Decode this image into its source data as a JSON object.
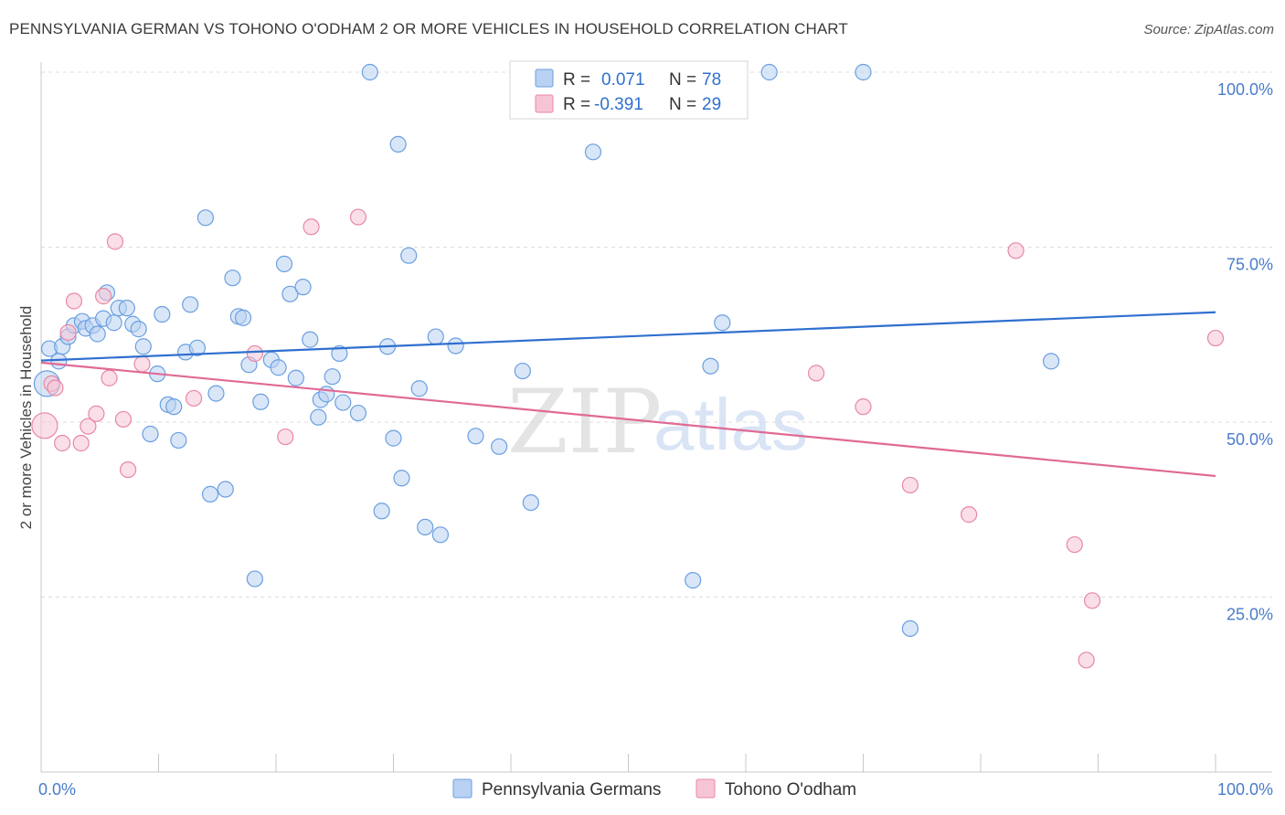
{
  "title": "PENNSYLVANIA GERMAN VS TOHONO O'ODHAM 2 OR MORE VEHICLES IN HOUSEHOLD CORRELATION CHART",
  "source": "Source: ZipAtlas.com",
  "watermark": {
    "zip": "ZIP",
    "atlas": "atlas"
  },
  "colors": {
    "blue": "#6a9fe0",
    "blue_fill": "#b9d1f2",
    "blue_line": "#2f6fcf",
    "pink": "#e887a6",
    "pink_fill": "#f6c5d5",
    "pink_line": "#e06a94",
    "axis_text": "#4a7cc9"
  },
  "legend": {
    "rows": [
      {
        "r_label": "R =",
        "r_value": "0.071",
        "n_label": "N =",
        "n_value": "78"
      },
      {
        "r_label": "R =",
        "r_value": "-0.391",
        "n_label": "N =",
        "n_value": "29"
      }
    ]
  },
  "chart_data": {
    "type": "scatter",
    "title": "PENNSYLVANIA GERMAN VS TOHONO O'ODHAM 2 OR MORE VEHICLES IN HOUSEHOLD CORRELATION CHART",
    "xlabel": "",
    "ylabel": "2 or more Vehicles in Household",
    "xlim": [
      0,
      100
    ],
    "ylim": [
      0,
      105
    ],
    "x_tick_labels": [
      {
        "value": 0,
        "label": "0.0%"
      },
      {
        "value": 100,
        "label": "100.0%"
      }
    ],
    "y_tick_labels": [
      {
        "value": 100,
        "label": "100.0%"
      },
      {
        "value": 75,
        "label": "75.0%"
      },
      {
        "value": 50,
        "label": "50.0%"
      },
      {
        "value": 25,
        "label": "25.0%"
      }
    ],
    "grid": true,
    "legend_position": "top-center",
    "series": [
      {
        "name": "Pennsylvania Germans",
        "color": "#6a9fe0",
        "trend": {
          "x": [
            0,
            100
          ],
          "y": [
            58.8,
            65.7
          ]
        },
        "points": [
          [
            0.5,
            55.5
          ],
          [
            0.7,
            60.5
          ],
          [
            1.5,
            58.7
          ],
          [
            1.8,
            60.8
          ],
          [
            2.3,
            62.2
          ],
          [
            2.8,
            63.8
          ],
          [
            3.5,
            64.4
          ],
          [
            3.8,
            63.4
          ],
          [
            4.4,
            63.8
          ],
          [
            4.8,
            62.6
          ],
          [
            5.3,
            64.8
          ],
          [
            5.6,
            68.5
          ],
          [
            6.2,
            64.2
          ],
          [
            6.6,
            66.3
          ],
          [
            7.3,
            66.3
          ],
          [
            7.8,
            64.0
          ],
          [
            8.3,
            63.3
          ],
          [
            8.7,
            60.8
          ],
          [
            9.3,
            48.3
          ],
          [
            9.9,
            56.9
          ],
          [
            10.3,
            65.4
          ],
          [
            10.8,
            52.5
          ],
          [
            11.3,
            52.2
          ],
          [
            11.7,
            47.4
          ],
          [
            12.3,
            60.0
          ],
          [
            12.7,
            66.8
          ],
          [
            13.3,
            60.6
          ],
          [
            14.0,
            79.2
          ],
          [
            14.4,
            39.7
          ],
          [
            14.9,
            54.1
          ],
          [
            15.7,
            40.4
          ],
          [
            16.3,
            70.6
          ],
          [
            16.8,
            65.1
          ],
          [
            17.2,
            64.9
          ],
          [
            17.7,
            58.2
          ],
          [
            18.2,
            27.6
          ],
          [
            18.7,
            52.9
          ],
          [
            19.6,
            58.9
          ],
          [
            20.2,
            57.8
          ],
          [
            20.7,
            72.6
          ],
          [
            21.2,
            68.3
          ],
          [
            21.7,
            56.3
          ],
          [
            22.3,
            69.3
          ],
          [
            22.9,
            61.8
          ],
          [
            23.6,
            50.7
          ],
          [
            23.8,
            53.2
          ],
          [
            24.3,
            54.0
          ],
          [
            24.8,
            56.5
          ],
          [
            25.4,
            59.8
          ],
          [
            25.7,
            52.8
          ],
          [
            27.0,
            51.3
          ],
          [
            28.0,
            100.0
          ],
          [
            29.0,
            37.3
          ],
          [
            29.5,
            60.8
          ],
          [
            30.0,
            47.7
          ],
          [
            30.4,
            89.7
          ],
          [
            30.7,
            42.0
          ],
          [
            31.3,
            73.8
          ],
          [
            32.2,
            54.8
          ],
          [
            32.7,
            35.0
          ],
          [
            33.6,
            62.2
          ],
          [
            34.0,
            33.9
          ],
          [
            35.3,
            60.9
          ],
          [
            37.0,
            48.0
          ],
          [
            39.0,
            46.5
          ],
          [
            41.0,
            57.3
          ],
          [
            41.7,
            38.5
          ],
          [
            43.0,
            100.0
          ],
          [
            47.0,
            88.6
          ],
          [
            50.0,
            100.0
          ],
          [
            54.0,
            100.0
          ],
          [
            55.5,
            27.4
          ],
          [
            57.0,
            58.0
          ],
          [
            58.0,
            64.2
          ],
          [
            62.0,
            100.0
          ],
          [
            70.0,
            100.0
          ],
          [
            74.0,
            20.5
          ],
          [
            86.0,
            58.7
          ]
        ]
      },
      {
        "name": "Tohono O'odham",
        "color": "#e887a6",
        "trend": {
          "x": [
            0,
            100
          ],
          "y": [
            58.5,
            42.3
          ]
        },
        "points": [
          [
            0.3,
            49.5
          ],
          [
            0.9,
            55.5
          ],
          [
            1.2,
            54.9
          ],
          [
            1.8,
            47.0
          ],
          [
            2.3,
            62.8
          ],
          [
            2.8,
            67.3
          ],
          [
            3.4,
            47.0
          ],
          [
            4.0,
            49.4
          ],
          [
            4.7,
            51.2
          ],
          [
            5.3,
            68.0
          ],
          [
            5.8,
            56.3
          ],
          [
            6.3,
            75.8
          ],
          [
            7.0,
            50.4
          ],
          [
            7.4,
            43.2
          ],
          [
            8.6,
            58.3
          ],
          [
            13.0,
            53.4
          ],
          [
            18.2,
            59.8
          ],
          [
            20.8,
            47.9
          ],
          [
            23.0,
            77.9
          ],
          [
            27.0,
            79.3
          ],
          [
            66.0,
            57.0
          ],
          [
            70.0,
            52.2
          ],
          [
            74.0,
            41.0
          ],
          [
            79.0,
            36.8
          ],
          [
            83.0,
            74.5
          ],
          [
            88.0,
            32.5
          ],
          [
            89.5,
            24.5
          ],
          [
            89.0,
            16.0
          ],
          [
            100.0,
            62.0
          ]
        ]
      }
    ]
  }
}
